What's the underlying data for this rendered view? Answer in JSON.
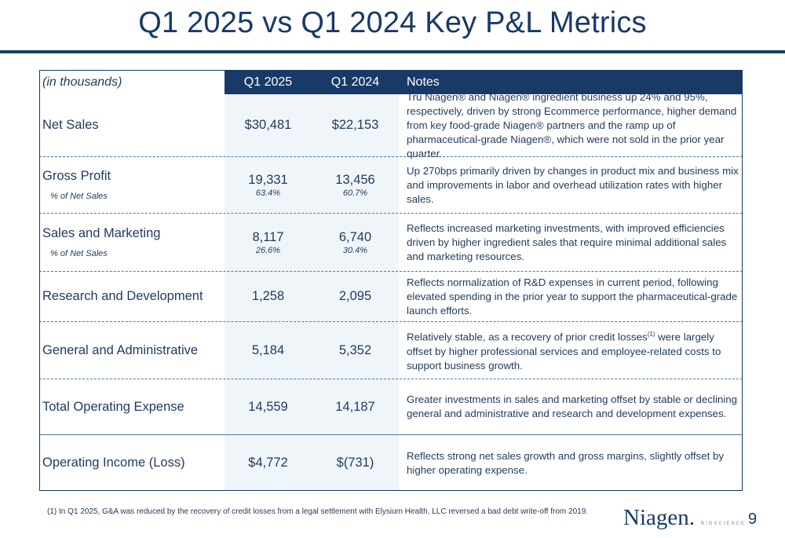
{
  "title": "Q1 2025 vs Q1 2024 Key P&L Metrics",
  "table": {
    "headers": {
      "unit": "(in thousands)",
      "col1": "Q1 2025",
      "col2": "Q1 2024",
      "col3": "Notes"
    },
    "rows": [
      {
        "label": "Net Sales",
        "q1_2025": "$30,481",
        "q1_2024": "$22,153",
        "note": "Tru Niagen® and Niagen® ingredient business up 24% and 95%, respectively, driven by strong Ecommerce performance, higher demand from key food-grade Niagen® partners and the ramp up of pharmaceutical-grade Niagen®, which were not sold in the prior year quarter."
      },
      {
        "label": "Gross Profit",
        "sublabel": "% of Net Sales",
        "q1_2025": "19,331",
        "q1_2025_pct": "63.4%",
        "q1_2024": "13,456",
        "q1_2024_pct": "60.7%",
        "note": "Up 270bps primarily driven by changes in product mix and business mix and improvements in labor and overhead utilization rates with higher sales."
      },
      {
        "label": "Sales and Marketing",
        "sublabel": "% of Net Sales",
        "q1_2025": "8,117",
        "q1_2025_pct": "26.6%",
        "q1_2024": "6,740",
        "q1_2024_pct": "30.4%",
        "note": "Reflects increased marketing investments, with improved efficiencies driven by higher ingredient sales that require minimal additional sales and marketing resources."
      },
      {
        "label": "Research and Development",
        "q1_2025": "1,258",
        "q1_2024": "2,095",
        "note": "Reflects normalization of R&D expenses in current period, following elevated spending in the prior year to support the pharmaceutical-grade launch efforts."
      },
      {
        "label": "General and Administrative",
        "q1_2025": "5,184",
        "q1_2024": "5,352",
        "note_pre": "Relatively stable, as a recovery of prior credit losses",
        "note_sup": "(1)",
        "note_post": " were largely offset by higher professional services and employee-related costs to support business growth."
      },
      {
        "label": "Total Operating Expense",
        "q1_2025": "14,559",
        "q1_2024": "14,187",
        "note": "Greater investments in sales and marketing offset by stable or declining general and administrative and research and development expenses."
      },
      {
        "label": "Operating Income (Loss)",
        "q1_2025": "$4,772",
        "q1_2024": "$(731)",
        "note": "Reflects strong net sales growth and gross margins, slightly offset by higher operating expense."
      }
    ]
  },
  "footnote": "(1) In Q1 2025, G&A was reduced by the recovery of credit losses from a legal settlement with Elysium Health, LLC reversed a bad debt write-off from 2019.",
  "logo": {
    "word": "Niagen.",
    "sub": "BIOSCIENCE"
  },
  "page_number": "9",
  "colors": {
    "navy": "#173a67",
    "text": "#1f3a5c",
    "shade": "#f0f5f9",
    "divider": "#4a7aa5"
  }
}
